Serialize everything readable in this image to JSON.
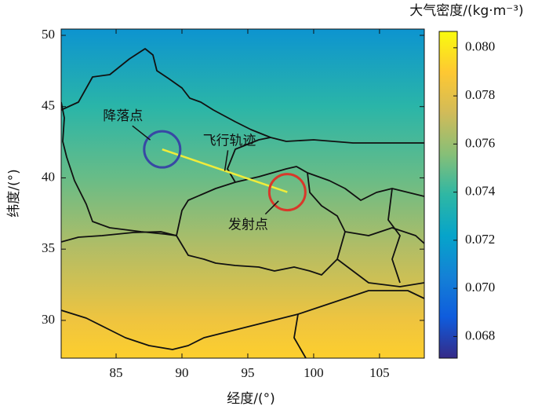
{
  "chart_data": {
    "type": "heatmap",
    "x_label": "经度/(°)",
    "y_label": "纬度/(°)",
    "colorbar_label": "大气密度/(kg·m⁻³)",
    "xlim": [
      80.83,
      108.4
    ],
    "ylim": [
      27.35,
      50.44
    ],
    "xticks": [
      85,
      90,
      95,
      100,
      105
    ],
    "yticks": [
      30,
      35,
      40,
      45,
      50
    ],
    "clim": [
      0.0671,
      0.08068
    ],
    "cticks": [
      {
        "value": 0.068,
        "label": "0.068"
      },
      {
        "value": 0.07,
        "label": "0.070"
      },
      {
        "value": 0.072,
        "label": "0.072"
      },
      {
        "value": 0.074,
        "label": "0.074"
      },
      {
        "value": 0.076,
        "label": "0.076"
      },
      {
        "value": 0.078,
        "label": "0.078"
      },
      {
        "value": 0.08,
        "label": "0.080"
      }
    ],
    "colormap": [
      "#352a87",
      "#0f5cdd",
      "#1481d6",
      "#06a4ca",
      "#2eb7a4",
      "#87bf77",
      "#d1bb59",
      "#fec832",
      "#f9fb0e"
    ],
    "field": {
      "lat": [
        27.35,
        30,
        35,
        40,
        45,
        50.44
      ],
      "density": [
        0.0792,
        0.0784,
        0.0766,
        0.075,
        0.0737,
        0.0714
      ]
    },
    "trajectory": {
      "label": "飞行轨迹",
      "lon": [
        98,
        88.5
      ],
      "lat": [
        39,
        42
      ],
      "color": "#f0ec3a"
    },
    "points": [
      {
        "name": "降落点",
        "lon": 88.5,
        "lat": 42,
        "color": "#3848a4"
      },
      {
        "name": "发射点",
        "lon": 98,
        "lat": 39,
        "color": "#d8382a"
      }
    ]
  }
}
